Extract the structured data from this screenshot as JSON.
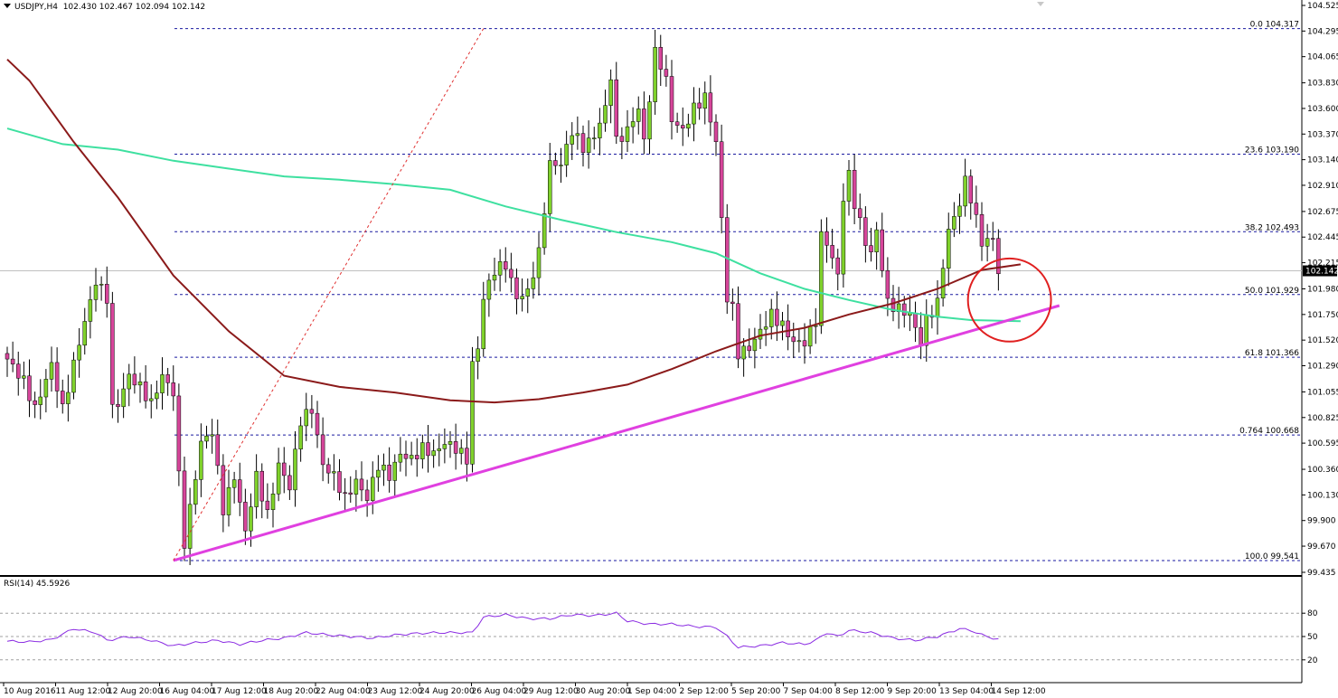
{
  "header": {
    "symbol": "USDJPY,H4",
    "ohlc": "102.430 102.467 102.094 102.142"
  },
  "rsi_header": {
    "label": "RSI(14) 45.5926"
  },
  "colors": {
    "bull": "#7fd12b",
    "bear": "#d6459a",
    "wick": "#000000",
    "ma_red": "#8b1a1a",
    "ma_green": "#3ee0a0",
    "trendline": "#e040e0",
    "fib": "#1a1aa0",
    "circle": "#e02020",
    "rsi": "#8a2be2",
    "current_box": "#000000"
  },
  "chart_data": [
    {
      "type": "candlestick",
      "name": "USDJPY H4",
      "y_ticks": [
        "104.525",
        "104.295",
        "104.065",
        "103.830",
        "103.600",
        "103.370",
        "103.140",
        "102.910",
        "102.675",
        "102.445",
        "102.215",
        "101.980",
        "101.750",
        "101.520",
        "101.290",
        "101.055",
        "100.825",
        "100.595",
        "100.360",
        "100.130",
        "99.900",
        "99.670",
        "99.435"
      ],
      "ylim": [
        99.435,
        104.525
      ],
      "x_labels": [
        "10 Aug 2016",
        "11 Aug 12:00",
        "12 Aug 20:00",
        "16 Aug 04:00",
        "17 Aug 12:00",
        "18 Aug 20:00",
        "22 Aug 04:00",
        "23 Aug 12:00",
        "24 Aug 20:00",
        "26 Aug 04:00",
        "29 Aug 12:00",
        "30 Aug 20:00",
        "1 Sep 04:00",
        "2 Sep 12:00",
        "5 Sep 20:00",
        "7 Sep 04:00",
        "8 Sep 12:00",
        "9 Sep 20:00",
        "13 Sep 04:00",
        "14 Sep 12:00"
      ],
      "fib_levels": [
        {
          "label": "0.0 104.317",
          "value": 104.317
        },
        {
          "label": "23.6 103.190",
          "value": 103.19
        },
        {
          "label": "38.2 102.493",
          "value": 102.493
        },
        {
          "label": "50.0 101.929",
          "value": 101.929
        },
        {
          "label": "61.8 101.366",
          "value": 101.366
        },
        {
          "label": "0.764 100.668",
          "value": 100.668
        },
        {
          "label": "100.0 99.541",
          "value": 99.541
        }
      ],
      "current_price": {
        "label": "102.142",
        "value": 102.142
      },
      "anchors": [
        [
          0,
          101.35
        ],
        [
          3,
          101.15
        ],
        [
          5,
          100.9
        ],
        [
          8,
          101.3
        ],
        [
          10,
          100.9
        ],
        [
          13,
          101.5
        ],
        [
          16,
          102.05
        ],
        [
          18,
          101.9
        ],
        [
          19,
          100.9
        ],
        [
          20,
          100.95
        ],
        [
          22,
          101.2
        ],
        [
          24,
          101.1
        ],
        [
          26,
          100.95
        ],
        [
          28,
          101.2
        ],
        [
          30,
          101.05
        ],
        [
          31,
          100.3
        ],
        [
          32,
          99.7
        ],
        [
          35,
          100.6
        ],
        [
          37,
          100.7
        ],
        [
          39,
          100.0
        ],
        [
          41,
          100.3
        ],
        [
          43,
          99.8
        ],
        [
          45,
          100.3
        ],
        [
          47,
          99.95
        ],
        [
          49,
          100.4
        ],
        [
          51,
          100.2
        ],
        [
          53,
          100.8
        ],
        [
          55,
          100.9
        ],
        [
          57,
          100.4
        ],
        [
          59,
          100.3
        ],
        [
          61,
          100.1
        ],
        [
          63,
          100.25
        ],
        [
          65,
          100.1
        ],
        [
          67,
          100.4
        ],
        [
          69,
          100.3
        ],
        [
          71,
          100.5
        ],
        [
          73,
          100.45
        ],
        [
          75,
          100.55
        ],
        [
          77,
          100.5
        ],
        [
          79,
          100.6
        ],
        [
          81,
          100.55
        ],
        [
          83,
          100.45
        ],
        [
          84,
          101.3
        ],
        [
          85,
          101.45
        ],
        [
          86,
          101.9
        ],
        [
          88,
          102.15
        ],
        [
          90,
          102.2
        ],
        [
          92,
          101.9
        ],
        [
          94,
          101.95
        ],
        [
          96,
          102.3
        ],
        [
          98,
          103.1
        ],
        [
          100,
          103.1
        ],
        [
          102,
          103.4
        ],
        [
          104,
          103.25
        ],
        [
          106,
          103.35
        ],
        [
          108,
          103.6
        ],
        [
          109,
          103.9
        ],
        [
          110,
          103.3
        ],
        [
          112,
          103.4
        ],
        [
          114,
          103.6
        ],
        [
          115,
          103.3
        ],
        [
          116,
          103.7
        ],
        [
          117,
          104.1
        ],
        [
          118,
          104.0
        ],
        [
          119,
          103.85
        ],
        [
          120,
          103.5
        ],
        [
          122,
          103.4
        ],
        [
          124,
          103.6
        ],
        [
          126,
          103.7
        ],
        [
          128,
          103.3
        ],
        [
          129,
          102.6
        ],
        [
          130,
          101.9
        ],
        [
          131,
          101.8
        ],
        [
          132,
          101.4
        ],
        [
          134,
          101.45
        ],
        [
          136,
          101.6
        ],
        [
          138,
          101.75
        ],
        [
          140,
          101.65
        ],
        [
          142,
          101.5
        ],
        [
          144,
          101.5
        ],
        [
          146,
          101.7
        ],
        [
          147,
          102.45
        ],
        [
          148,
          102.4
        ],
        [
          150,
          102.1
        ],
        [
          151,
          102.8
        ],
        [
          152,
          103.0
        ],
        [
          153,
          102.75
        ],
        [
          155,
          102.4
        ],
        [
          156,
          102.3
        ],
        [
          157,
          102.5
        ],
        [
          159,
          101.85
        ],
        [
          161,
          101.8
        ],
        [
          163,
          101.75
        ],
        [
          165,
          101.5
        ],
        [
          166,
          101.7
        ],
        [
          168,
          101.85
        ],
        [
          169,
          102.2
        ],
        [
          170,
          102.5
        ],
        [
          172,
          102.75
        ],
        [
          173,
          102.95
        ],
        [
          174,
          102.8
        ],
        [
          175,
          102.6
        ],
        [
          176,
          102.4
        ],
        [
          178,
          102.43
        ],
        [
          179,
          102.14
        ]
      ],
      "overlays": {
        "ma_red": [
          [
            0,
            104.04
          ],
          [
            4,
            103.85
          ],
          [
            12,
            103.3
          ],
          [
            20,
            102.8
          ],
          [
            30,
            102.1
          ],
          [
            40,
            101.6
          ],
          [
            50,
            101.2
          ],
          [
            60,
            101.1
          ],
          [
            70,
            101.05
          ],
          [
            80,
            100.98
          ],
          [
            88,
            100.96
          ],
          [
            96,
            100.99
          ],
          [
            104,
            101.05
          ],
          [
            112,
            101.12
          ],
          [
            120,
            101.26
          ],
          [
            128,
            101.42
          ],
          [
            136,
            101.56
          ],
          [
            144,
            101.63
          ],
          [
            152,
            101.75
          ],
          [
            160,
            101.85
          ],
          [
            168,
            101.98
          ],
          [
            176,
            102.15
          ],
          [
            183,
            102.2
          ]
        ],
        "ma_green": [
          [
            0,
            103.42
          ],
          [
            10,
            103.28
          ],
          [
            20,
            103.23
          ],
          [
            30,
            103.13
          ],
          [
            40,
            103.06
          ],
          [
            50,
            102.99
          ],
          [
            60,
            102.96
          ],
          [
            70,
            102.92
          ],
          [
            80,
            102.87
          ],
          [
            90,
            102.72
          ],
          [
            100,
            102.6
          ],
          [
            110,
            102.49
          ],
          [
            120,
            102.4
          ],
          [
            128,
            102.3
          ],
          [
            136,
            102.12
          ],
          [
            144,
            101.98
          ],
          [
            152,
            101.88
          ],
          [
            160,
            101.79
          ],
          [
            168,
            101.73
          ],
          [
            174,
            101.7
          ],
          [
            183,
            101.69
          ]
        ],
        "trendline": [
          [
            30,
            99.541
          ],
          [
            190,
            101.83
          ]
        ],
        "fib_diag": [
          [
            30,
            99.541
          ],
          [
            86,
            104.317
          ]
        ],
        "circle": {
          "center": [
            181,
            101.88
          ],
          "radius_bars": 7.5
        }
      }
    },
    {
      "type": "line",
      "name": "RSI(14)",
      "ylim": [
        0,
        100
      ],
      "levels": [
        "80",
        "50",
        "20"
      ],
      "anchors": [
        [
          0,
          44
        ],
        [
          4,
          43
        ],
        [
          8,
          46
        ],
        [
          12,
          60
        ],
        [
          16,
          55
        ],
        [
          18,
          45
        ],
        [
          22,
          50
        ],
        [
          26,
          45
        ],
        [
          30,
          38
        ],
        [
          34,
          42
        ],
        [
          38,
          45
        ],
        [
          42,
          40
        ],
        [
          46,
          45
        ],
        [
          50,
          48
        ],
        [
          54,
          55
        ],
        [
          58,
          52
        ],
        [
          62,
          50
        ],
        [
          66,
          48
        ],
        [
          70,
          52
        ],
        [
          74,
          54
        ],
        [
          78,
          55
        ],
        [
          84,
          55
        ],
        [
          86,
          75
        ],
        [
          90,
          78
        ],
        [
          94,
          73
        ],
        [
          98,
          73
        ],
        [
          102,
          78
        ],
        [
          106,
          77
        ],
        [
          110,
          80
        ],
        [
          112,
          70
        ],
        [
          116,
          66
        ],
        [
          120,
          66
        ],
        [
          124,
          63
        ],
        [
          128,
          62
        ],
        [
          130,
          50
        ],
        [
          132,
          36
        ],
        [
          136,
          38
        ],
        [
          140,
          42
        ],
        [
          144,
          40
        ],
        [
          146,
          45
        ],
        [
          148,
          55
        ],
        [
          150,
          50
        ],
        [
          152,
          58
        ],
        [
          156,
          55
        ],
        [
          160,
          48
        ],
        [
          164,
          45
        ],
        [
          168,
          50
        ],
        [
          172,
          60
        ],
        [
          174,
          58
        ],
        [
          176,
          52
        ],
        [
          179,
          46
        ]
      ]
    }
  ]
}
